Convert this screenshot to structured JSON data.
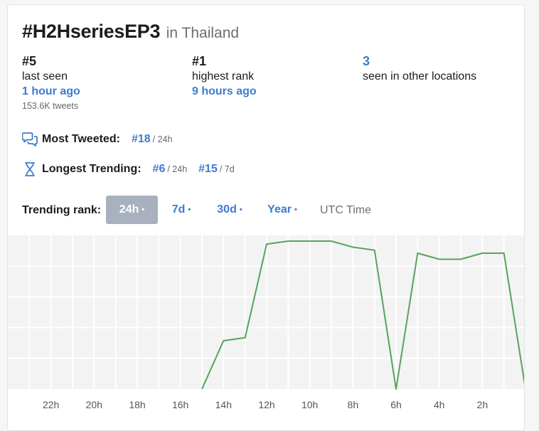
{
  "header": {
    "hashtag": "#H2HseriesEP3",
    "location_text": "in Thailand"
  },
  "stats": {
    "last_seen": {
      "rank": "#5",
      "label": "last seen",
      "ago": "1 hour ago",
      "tweets": "153.6K tweets"
    },
    "highest": {
      "rank": "#1",
      "label": "highest rank",
      "ago": "9 hours ago"
    },
    "other_locations": {
      "count": "3",
      "label": "seen in other locations"
    }
  },
  "most_tweeted": {
    "label": "Most Tweeted:",
    "rank": "#18",
    "period": "/ 24h",
    "icon": "chat-bubbles-icon"
  },
  "longest_trending": {
    "label": "Longest Trending:",
    "icon": "hourglass-icon",
    "items": [
      {
        "rank": "#6",
        "period": "/ 24h"
      },
      {
        "rank": "#15",
        "period": "/ 7d"
      }
    ]
  },
  "trending_rank": {
    "label": "Trending rank:",
    "tabs": [
      {
        "label": "24h",
        "dot": "•",
        "active": true
      },
      {
        "label": "7d",
        "dot": "•",
        "active": false
      },
      {
        "label": "30d",
        "dot": "•",
        "active": false
      },
      {
        "label": "Year",
        "dot": "•",
        "active": false
      }
    ],
    "timezone": "UTC Time"
  },
  "colors": {
    "accent": "#3e7bd0",
    "line": "#57a35a",
    "active_tab": "#a8b1bd",
    "grid": "#eeeeee"
  },
  "chart_data": {
    "type": "line",
    "x_ticks": [
      "22h",
      "20h",
      "18h",
      "16h",
      "14h",
      "12h",
      "10h",
      "8h",
      "6h",
      "4h",
      "2h"
    ],
    "x_tick_hours_ago": [
      22,
      20,
      18,
      16,
      14,
      12,
      10,
      8,
      6,
      4,
      2
    ],
    "x_range_hours_ago": [
      24,
      0
    ],
    "y_range_rank": [
      50,
      1
    ],
    "grid": true,
    "series": [
      {
        "points": [
          {
            "hours_ago": 15,
            "rank": 50
          },
          {
            "hours_ago": 14,
            "rank": 34
          },
          {
            "hours_ago": 13,
            "rank": 33
          },
          {
            "hours_ago": 12,
            "rank": 2
          },
          {
            "hours_ago": 11,
            "rank": 1
          },
          {
            "hours_ago": 10,
            "rank": 1
          },
          {
            "hours_ago": 9,
            "rank": 1
          },
          {
            "hours_ago": 8,
            "rank": 3
          },
          {
            "hours_ago": 7,
            "rank": 4
          },
          {
            "hours_ago": 6,
            "rank": 50
          },
          {
            "hours_ago": 5,
            "rank": 5
          },
          {
            "hours_ago": 4,
            "rank": 7
          },
          {
            "hours_ago": 3,
            "rank": 7
          },
          {
            "hours_ago": 2,
            "rank": 5
          },
          {
            "hours_ago": 1,
            "rank": 5
          },
          {
            "hours_ago": 0,
            "rank": 50
          }
        ]
      }
    ]
  }
}
